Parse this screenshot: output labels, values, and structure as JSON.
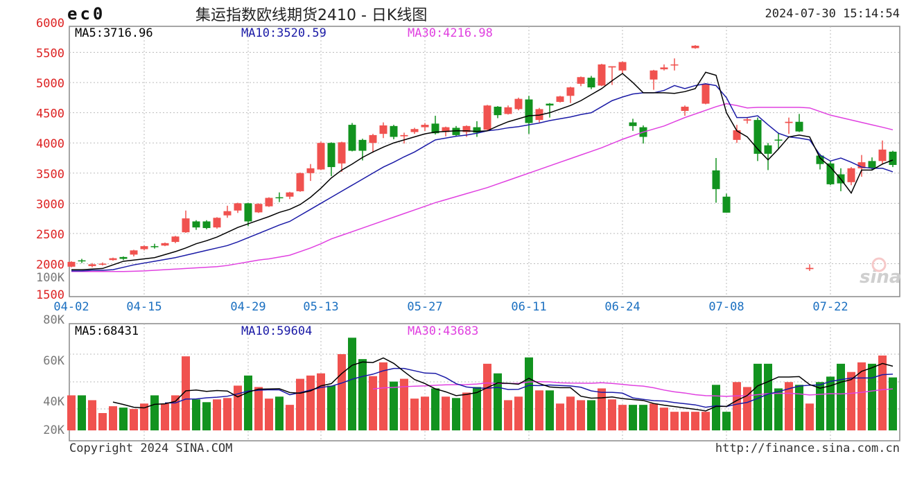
{
  "header": {
    "code": "ec0",
    "title": "集运指数欧线期货2410 - 日K线图",
    "timestamp": "2024-07-30 15:14:54"
  },
  "footer": {
    "copyright": "Copyright 2024 SINA.COM",
    "url": "http://finance.sina.com.cn"
  },
  "watermark": "sina",
  "colors": {
    "up": "#f0524f",
    "down": "#12931f",
    "ma5": "#000000",
    "ma10": "#1a1aa6",
    "ma30": "#e040e0",
    "price_axis": "#dd2222",
    "grid": "#bbbbbb"
  },
  "chart_data": [
    {
      "type": "candlestick",
      "panel": "price",
      "legend": {
        "ma5": "MA5:3716.96",
        "ma10": "MA10:3520.59",
        "ma30": "MA30:4216.98"
      },
      "y_ticks": [
        "6000",
        "5500",
        "5000",
        "4500",
        "4000",
        "3500",
        "3000",
        "2500",
        "2000",
        "1500"
      ],
      "ylim": [
        1500,
        6000
      ],
      "grid": true,
      "x_ticks": [
        {
          "index": 0,
          "label": "04-02"
        },
        {
          "index": 7,
          "label": "04-15"
        },
        {
          "index": 17,
          "label": "04-29"
        },
        {
          "index": 24,
          "label": "05-13"
        },
        {
          "index": 34,
          "label": "05-27"
        },
        {
          "index": 44,
          "label": "06-11"
        },
        {
          "index": 53,
          "label": "06-24"
        },
        {
          "index": 63,
          "label": "07-08"
        },
        {
          "index": 73,
          "label": "07-22"
        }
      ],
      "ohlc": [
        [
          1950,
          2040,
          1940,
          2030
        ],
        [
          2055,
          2080,
          2010,
          2045
        ],
        [
          1960,
          2010,
          1940,
          1990
        ],
        [
          1985,
          2020,
          1970,
          2000
        ],
        [
          2060,
          2100,
          2050,
          2090
        ],
        [
          2110,
          2120,
          2060,
          2080
        ],
        [
          2150,
          2230,
          2120,
          2220
        ],
        [
          2240,
          2300,
          2220,
          2290
        ],
        [
          2290,
          2330,
          2250,
          2280
        ],
        [
          2300,
          2350,
          2290,
          2340
        ],
        [
          2360,
          2460,
          2340,
          2450
        ],
        [
          2520,
          2880,
          2510,
          2750
        ],
        [
          2700,
          2720,
          2560,
          2600
        ],
        [
          2700,
          2720,
          2570,
          2590
        ],
        [
          2600,
          2770,
          2580,
          2760
        ],
        [
          2800,
          2960,
          2760,
          2870
        ],
        [
          2880,
          3010,
          2840,
          3000
        ],
        [
          3000,
          3010,
          2620,
          2700
        ],
        [
          2850,
          3000,
          2840,
          2990
        ],
        [
          2950,
          3100,
          2940,
          3090
        ],
        [
          3100,
          3180,
          3020,
          3090
        ],
        [
          3110,
          3190,
          3070,
          3180
        ],
        [
          3200,
          3510,
          3190,
          3500
        ],
        [
          3500,
          3650,
          3370,
          3580
        ],
        [
          3560,
          4020,
          3550,
          4000
        ],
        [
          4000,
          4010,
          3450,
          3600
        ],
        [
          3660,
          4020,
          3520,
          4010
        ],
        [
          4300,
          4330,
          3860,
          3870
        ],
        [
          4050,
          4070,
          3710,
          3870
        ],
        [
          4000,
          4150,
          3840,
          4130
        ],
        [
          4150,
          4340,
          4080,
          4290
        ],
        [
          4280,
          4300,
          4060,
          4100
        ],
        [
          4110,
          4170,
          3990,
          4130
        ],
        [
          4180,
          4250,
          4150,
          4230
        ],
        [
          4260,
          4330,
          4200,
          4300
        ],
        [
          4320,
          4450,
          4140,
          4160
        ],
        [
          4180,
          4270,
          4110,
          4260
        ],
        [
          4250,
          4280,
          4110,
          4130
        ],
        [
          4180,
          4290,
          4100,
          4280
        ],
        [
          4260,
          4360,
          4100,
          4170
        ],
        [
          4220,
          4630,
          4210,
          4620
        ],
        [
          4600,
          4610,
          4410,
          4460
        ],
        [
          4480,
          4620,
          4470,
          4590
        ],
        [
          4560,
          4750,
          4540,
          4730
        ],
        [
          4720,
          4780,
          4150,
          4330
        ],
        [
          4380,
          4580,
          4340,
          4560
        ],
        [
          4650,
          4660,
          4420,
          4620
        ],
        [
          4680,
          4780,
          4670,
          4770
        ],
        [
          4780,
          4930,
          4660,
          4920
        ],
        [
          4980,
          5100,
          4940,
          5090
        ],
        [
          5080,
          5110,
          4890,
          4920
        ],
        [
          4950,
          5310,
          4940,
          5300
        ],
        [
          5250,
          5270,
          4960,
          5270
        ],
        [
          5200,
          5350,
          5140,
          5340
        ],
        [
          4340,
          4400,
          4200,
          4280
        ],
        [
          4260,
          4290,
          3990,
          4100
        ],
        [
          5050,
          5210,
          4880,
          5200
        ],
        [
          5220,
          5300,
          5200,
          5250
        ],
        [
          5290,
          5400,
          5200,
          5300
        ],
        [
          4530,
          4620,
          4450,
          4600
        ],
        [
          5570,
          5620,
          5560,
          5610
        ],
        [
          4650,
          4990,
          4640,
          4980
        ],
        [
          3545,
          3750,
          3010,
          3235
        ],
        [
          3110,
          3160,
          2845,
          2845
        ],
        [
          4050,
          4300,
          4000,
          4210
        ],
        [
          4370,
          4420,
          4320,
          4390
        ],
        [
          4380,
          4420,
          3700,
          3820
        ],
        [
          3960,
          4000,
          3550,
          3820
        ],
        [
          4055,
          4170,
          3900,
          4045
        ],
        [
          4330,
          4420,
          4150,
          4350
        ],
        [
          4350,
          4480,
          4180,
          4190
        ],
        [
          1910,
          1990,
          1880,
          1930
        ],
        [
          3790,
          3820,
          3560,
          3650
        ],
        [
          3660,
          3700,
          3300,
          3315
        ],
        [
          3480,
          3580,
          3200,
          3330
        ],
        [
          3350,
          3600,
          3300,
          3580
        ],
        [
          3580,
          3800,
          3440,
          3680
        ],
        [
          3700,
          3760,
          3550,
          3590
        ],
        [
          3700,
          4040,
          3640,
          3890
        ],
        [
          3855,
          3870,
          3600,
          3635
        ]
      ],
      "ma5": [
        1900,
        1900,
        1910,
        1920,
        1980,
        2040,
        2060,
        2080,
        2100,
        2150,
        2200,
        2260,
        2330,
        2380,
        2440,
        2520,
        2600,
        2660,
        2720,
        2780,
        2850,
        2900,
        2980,
        3100,
        3250,
        3420,
        3550,
        3650,
        3760,
        3850,
        3930,
        4000,
        4050,
        4100,
        4150,
        4180,
        4190,
        4200,
        4200,
        4190,
        4200,
        4280,
        4350,
        4400,
        4450,
        4460,
        4500,
        4560,
        4620,
        4700,
        4800,
        4900,
        5030,
        5150,
        5000,
        4830,
        4830,
        4830,
        4820,
        4850,
        4900,
        5170,
        5120,
        4500,
        4200,
        4100,
        3900,
        3720,
        3900,
        4100,
        4130,
        4100,
        3750,
        3600,
        3400,
        3170,
        3550,
        3550,
        3650,
        3717
      ],
      "ma10": [
        1880,
        1880,
        1890,
        1890,
        1900,
        1940,
        1980,
        2010,
        2040,
        2070,
        2100,
        2140,
        2180,
        2220,
        2260,
        2300,
        2360,
        2430,
        2500,
        2570,
        2640,
        2700,
        2800,
        2900,
        3000,
        3100,
        3200,
        3300,
        3400,
        3500,
        3600,
        3680,
        3770,
        3850,
        3950,
        4050,
        4080,
        4110,
        4130,
        4160,
        4200,
        4220,
        4250,
        4270,
        4300,
        4330,
        4370,
        4400,
        4430,
        4470,
        4500,
        4600,
        4700,
        4760,
        4810,
        4830,
        4830,
        4870,
        4950,
        4900,
        4950,
        4980,
        4950,
        4750,
        4420,
        4420,
        4450,
        4300,
        4160,
        4100,
        4080,
        4050,
        3800,
        3700,
        3750,
        3680,
        3600,
        3580,
        3580,
        3521
      ],
      "ma30": [
        1870,
        1870,
        1870,
        1870,
        1870,
        1870,
        1875,
        1880,
        1890,
        1900,
        1910,
        1920,
        1930,
        1940,
        1950,
        1970,
        2000,
        2030,
        2060,
        2080,
        2110,
        2140,
        2200,
        2260,
        2330,
        2410,
        2470,
        2530,
        2590,
        2650,
        2710,
        2770,
        2830,
        2890,
        2950,
        3010,
        3060,
        3110,
        3160,
        3210,
        3260,
        3320,
        3380,
        3440,
        3500,
        3560,
        3620,
        3680,
        3740,
        3800,
        3860,
        3920,
        3990,
        4060,
        4120,
        4180,
        4230,
        4280,
        4350,
        4420,
        4480,
        4540,
        4600,
        4650,
        4620,
        4580,
        4590,
        4590,
        4590,
        4590,
        4590,
        4580,
        4520,
        4460,
        4420,
        4380,
        4340,
        4300,
        4260,
        4217
      ]
    },
    {
      "type": "bar",
      "panel": "volume",
      "legend": {
        "ma5": "MA5:68431",
        "ma10": "MA10:59604",
        "ma30": "MA30:43683"
      },
      "y_ticks": [
        "100K",
        "80K",
        "60K",
        "40K",
        "20K"
      ],
      "values": [
        60400,
        60400,
        55500,
        42500,
        49400,
        48000,
        46600,
        52100,
        60400,
        52100,
        60400,
        99800,
        56300,
        53500,
        56300,
        57700,
        70200,
        80400,
        68800,
        57100,
        59100,
        50800,
        77100,
        80400,
        82600,
        70200,
        102000,
        118600,
        97000,
        79800,
        93700,
        74300,
        77100,
        57100,
        59100,
        67400,
        59100,
        57700,
        63200,
        68800,
        92300,
        82600,
        55500,
        59100,
        98700,
        65400,
        65400,
        52100,
        59100,
        55500,
        55500,
        67400,
        56300,
        50800,
        50800,
        50800,
        52100,
        48000,
        43800,
        43800,
        43800,
        43800,
        71000,
        43800,
        73800,
        68800,
        92300,
        92300,
        67400,
        73800,
        71000,
        52100,
        73800,
        79300,
        92300,
        84000,
        93700,
        92300,
        100600,
        78500
      ]
    }
  ]
}
